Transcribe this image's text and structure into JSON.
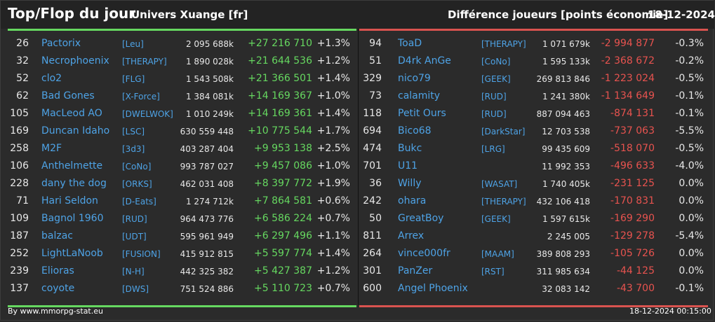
{
  "header": {
    "title": "Top/Flop du jour",
    "univers": "Univers Xuange [fr]",
    "diff_label": "Différence joueurs [points économie]",
    "date": "18-12-2024"
  },
  "colors": {
    "gain": "#66d860",
    "loss": "#e8534f",
    "link": "#4ea3e6"
  },
  "top": [
    {
      "rank": "26",
      "name": "Pactorix",
      "alliance": "[Leu]",
      "points": "2 095 688k",
      "delta": "+27 216 710",
      "pct": "+1.3%"
    },
    {
      "rank": "32",
      "name": "Necrophoenix",
      "alliance": "[THERAPY]",
      "points": "1 890 028k",
      "delta": "+21 644 536",
      "pct": "+1.2%"
    },
    {
      "rank": "52",
      "name": "clo2",
      "alliance": "[FLG]",
      "points": "1 543 508k",
      "delta": "+21 366 501",
      "pct": "+1.4%"
    },
    {
      "rank": "62",
      "name": "Bad Gones",
      "alliance": "[X-Force]",
      "points": "1 384 081k",
      "delta": "+14 169 367",
      "pct": "+1.0%"
    },
    {
      "rank": "105",
      "name": "MacLeod AO",
      "alliance": "[DWELWOK]",
      "points": "1 010 249k",
      "delta": "+14 169 361",
      "pct": "+1.4%"
    },
    {
      "rank": "169",
      "name": "Duncan Idaho",
      "alliance": "[LSC]",
      "points": "630 559 448",
      "delta": "+10 775 544",
      "pct": "+1.7%"
    },
    {
      "rank": "258",
      "name": "M2F",
      "alliance": "[3d3]",
      "points": "403 287 404",
      "delta": "+9 953 138",
      "pct": "+2.5%"
    },
    {
      "rank": "106",
      "name": "Anthelmette",
      "alliance": "[CoNo]",
      "points": "993 787 027",
      "delta": "+9 457 086",
      "pct": "+1.0%"
    },
    {
      "rank": "228",
      "name": "dany the dog",
      "alliance": "[ORKS]",
      "points": "462 031 408",
      "delta": "+8 397 772",
      "pct": "+1.9%"
    },
    {
      "rank": "71",
      "name": "Hari Seldon",
      "alliance": "[D-Eats]",
      "points": "1 274 712k",
      "delta": "+7 864 581",
      "pct": "+0.6%"
    },
    {
      "rank": "109",
      "name": "Bagnol 1960",
      "alliance": "[RUD]",
      "points": "964 473 776",
      "delta": "+6 586 224",
      "pct": "+0.7%"
    },
    {
      "rank": "187",
      "name": "balzac",
      "alliance": "[UDT]",
      "points": "595 961 949",
      "delta": "+6 297 496",
      "pct": "+1.1%"
    },
    {
      "rank": "252",
      "name": "LightLaNoob",
      "alliance": "[FUSION]",
      "points": "415 912 815",
      "delta": "+5 597 774",
      "pct": "+1.4%"
    },
    {
      "rank": "239",
      "name": "Elioras",
      "alliance": "[N-H]",
      "points": "442 325 382",
      "delta": "+5 427 387",
      "pct": "+1.2%"
    },
    {
      "rank": "137",
      "name": "coyote",
      "alliance": "[DWS]",
      "points": "751 524 886",
      "delta": "+5 110 723",
      "pct": "+0.7%"
    }
  ],
  "flop": [
    {
      "rank": "94",
      "name": "ToaD",
      "alliance": "[THERAPY]",
      "points": "1 071 679k",
      "delta": "-2 994 877",
      "pct": "-0.3%"
    },
    {
      "rank": "51",
      "name": "D4rk AnGe",
      "alliance": "[CoNo]",
      "points": "1 595 133k",
      "delta": "-2 368 672",
      "pct": "-0.2%"
    },
    {
      "rank": "329",
      "name": "nico79",
      "alliance": "[GEEK]",
      "points": "269 813 846",
      "delta": "-1 223 024",
      "pct": "-0.5%"
    },
    {
      "rank": "73",
      "name": "calamity",
      "alliance": "[RUD]",
      "points": "1 241 380k",
      "delta": "-1 134 649",
      "pct": "-0.1%"
    },
    {
      "rank": "118",
      "name": "Petit Ours",
      "alliance": "[RUD]",
      "points": "887 094 463",
      "delta": "-874 131",
      "pct": "-0.1%"
    },
    {
      "rank": "694",
      "name": "Bico68",
      "alliance": "[DarkStar]",
      "points": "12 703 538",
      "delta": "-737 063",
      "pct": "-5.5%"
    },
    {
      "rank": "474",
      "name": "Bukc",
      "alliance": "[LRG]",
      "points": "99 435 609",
      "delta": "-518 070",
      "pct": "-0.5%"
    },
    {
      "rank": "701",
      "name": "U11",
      "alliance": "",
      "points": "11 992 353",
      "delta": "-496 633",
      "pct": "-4.0%"
    },
    {
      "rank": "36",
      "name": "Willy",
      "alliance": "[WASAT]",
      "points": "1 740 405k",
      "delta": "-231 125",
      "pct": "0.0%"
    },
    {
      "rank": "242",
      "name": "ohara",
      "alliance": "[THERAPY]",
      "points": "432 106 418",
      "delta": "-170 831",
      "pct": "0.0%"
    },
    {
      "rank": "50",
      "name": "GreatBoy",
      "alliance": "[GEEK]",
      "points": "1 597 615k",
      "delta": "-169 290",
      "pct": "0.0%"
    },
    {
      "rank": "811",
      "name": "Arrex",
      "alliance": "",
      "points": "2 245 005",
      "delta": "-129 278",
      "pct": "-5.4%"
    },
    {
      "rank": "264",
      "name": "vince000fr",
      "alliance": "[MAAM]",
      "points": "389 808 293",
      "delta": "-105 726",
      "pct": "0.0%"
    },
    {
      "rank": "301",
      "name": "PanZer",
      "alliance": "[RST]",
      "points": "311 985 634",
      "delta": "-44 125",
      "pct": "0.0%"
    },
    {
      "rank": "600",
      "name": "Angel Phoenix",
      "alliance": "",
      "points": "32 083 142",
      "delta": "-43 700",
      "pct": "-0.1%"
    }
  ],
  "footer": {
    "source": "By www.mmorpg-stat.eu",
    "timestamp": "18-12-2024 00:15:00"
  }
}
